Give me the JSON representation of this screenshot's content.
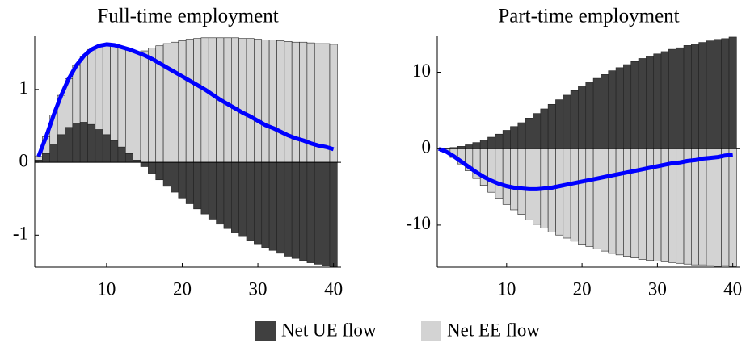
{
  "charts": [
    {
      "type": "bar",
      "title": "Full-time employment",
      "x": [
        1,
        2,
        3,
        4,
        5,
        6,
        7,
        8,
        9,
        10,
        11,
        12,
        13,
        14,
        15,
        16,
        17,
        18,
        19,
        20,
        21,
        22,
        23,
        24,
        25,
        26,
        27,
        28,
        29,
        30,
        31,
        32,
        33,
        34,
        35,
        36,
        37,
        38,
        39,
        40
      ],
      "series": [
        {
          "color": "#404040",
          "values": [
            0.03,
            0.12,
            0.25,
            0.38,
            0.48,
            0.54,
            0.55,
            0.52,
            0.45,
            0.38,
            0.3,
            0.21,
            0.12,
            0.03,
            -0.06,
            -0.15,
            -0.24,
            -0.33,
            -0.41,
            -0.49,
            -0.57,
            -0.64,
            -0.71,
            -0.78,
            -0.85,
            -0.91,
            -0.97,
            -1.02,
            -1.07,
            -1.12,
            -1.17,
            -1.21,
            -1.25,
            -1.29,
            -1.32,
            -1.35,
            -1.38,
            -1.4,
            -1.42,
            -1.44
          ]
        },
        {
          "color": "#d3d3d3",
          "values": [
            0.05,
            0.23,
            0.4,
            0.54,
            0.67,
            0.79,
            0.91,
            1.03,
            1.15,
            1.24,
            1.31,
            1.37,
            1.43,
            1.48,
            1.53,
            1.57,
            1.6,
            1.63,
            1.65,
            1.67,
            1.69,
            1.7,
            1.71,
            1.71,
            1.71,
            1.71,
            1.71,
            1.7,
            1.7,
            1.69,
            1.68,
            1.68,
            1.67,
            1.66,
            1.65,
            1.65,
            1.64,
            1.63,
            1.63,
            1.62
          ]
        }
      ],
      "line": {
        "color": "#0000ff",
        "values": [
          0.08,
          0.35,
          0.65,
          0.92,
          1.15,
          1.33,
          1.46,
          1.55,
          1.6,
          1.62,
          1.61,
          1.58,
          1.55,
          1.51,
          1.47,
          1.42,
          1.36,
          1.3,
          1.24,
          1.18,
          1.12,
          1.06,
          1.0,
          0.93,
          0.86,
          0.8,
          0.74,
          0.68,
          0.63,
          0.57,
          0.51,
          0.47,
          0.42,
          0.37,
          0.33,
          0.3,
          0.26,
          0.23,
          0.21,
          0.18
        ]
      },
      "xlim": [
        0.5,
        41
      ],
      "xticks": [
        10,
        20,
        30,
        40
      ],
      "ylim": [
        -1.44,
        1.73
      ],
      "yticks": [
        -1,
        0,
        1
      ]
    },
    {
      "type": "bar",
      "title": "Part-time employment",
      "x": [
        1,
        2,
        3,
        4,
        5,
        6,
        7,
        8,
        9,
        10,
        11,
        12,
        13,
        14,
        15,
        16,
        17,
        18,
        19,
        20,
        21,
        22,
        23,
        24,
        25,
        26,
        27,
        28,
        29,
        30,
        31,
        32,
        33,
        34,
        35,
        36,
        37,
        38,
        39,
        40
      ],
      "series": [
        {
          "color": "#404040",
          "values": [
            0,
            0.05,
            0.15,
            0.3,
            0.5,
            0.8,
            1.1,
            1.5,
            1.9,
            2.4,
            2.9,
            3.4,
            4.0,
            4.6,
            5.2,
            5.8,
            6.4,
            7.0,
            7.6,
            8.2,
            8.7,
            9.2,
            9.7,
            10.2,
            10.6,
            11.0,
            11.4,
            11.8,
            12.1,
            12.4,
            12.7,
            13.0,
            13.2,
            13.5,
            13.7,
            13.9,
            14.1,
            14.3,
            14.4,
            14.6
          ]
        },
        {
          "color": "#d3d3d3",
          "values": [
            0,
            -0.45,
            -1.15,
            -2.0,
            -2.9,
            -3.9,
            -4.8,
            -5.7,
            -6.5,
            -7.3,
            -8.0,
            -8.6,
            -9.3,
            -9.9,
            -10.4,
            -10.9,
            -11.3,
            -11.7,
            -12.1,
            -12.5,
            -12.8,
            -13.1,
            -13.4,
            -13.7,
            -13.9,
            -14.1,
            -14.3,
            -14.5,
            -14.6,
            -14.7,
            -14.8,
            -14.9,
            -15.0,
            -15.1,
            -15.2,
            -15.2,
            -15.3,
            -15.4,
            -15.3,
            -15.4
          ]
        }
      ],
      "line": {
        "color": "#0000ff",
        "values": [
          0,
          -0.4,
          -1.0,
          -1.7,
          -2.4,
          -3.1,
          -3.7,
          -4.2,
          -4.6,
          -4.9,
          -5.1,
          -5.2,
          -5.3,
          -5.3,
          -5.2,
          -5.1,
          -4.9,
          -4.7,
          -4.5,
          -4.3,
          -4.1,
          -3.9,
          -3.7,
          -3.5,
          -3.3,
          -3.1,
          -2.9,
          -2.7,
          -2.5,
          -2.3,
          -2.1,
          -1.9,
          -1.8,
          -1.6,
          -1.5,
          -1.3,
          -1.2,
          -1.1,
          -0.9,
          -0.8
        ]
      },
      "xlim": [
        0.8,
        41
      ],
      "xticks": [
        10,
        20,
        30,
        40
      ],
      "ylim": [
        -15.5,
        14.7
      ],
      "yticks": [
        -10,
        0,
        10
      ]
    }
  ],
  "legend": [
    {
      "name": "Net UE flow",
      "color": "#404040"
    },
    {
      "name": "Net EE flow",
      "color": "#d3d3d3"
    }
  ]
}
